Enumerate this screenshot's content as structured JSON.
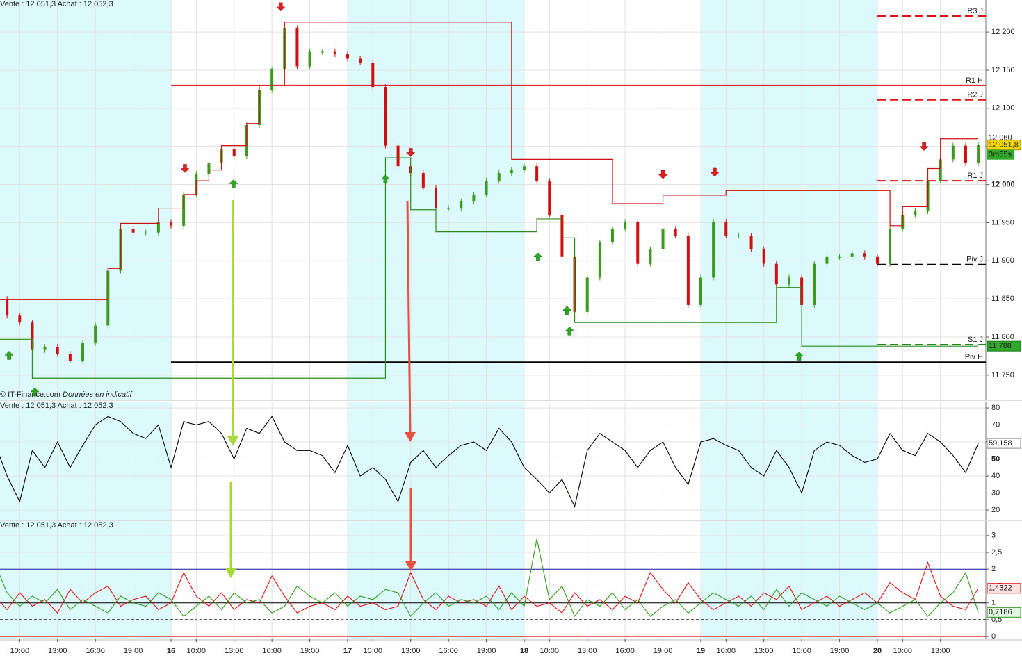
{
  "chart_data": [
    {
      "type": "candle",
      "header": "Vente : 12 051,3 Achat : 12 052,3",
      "source": "© IT-Finance.com",
      "note": "Données en indicatif",
      "x": [
        0,
        1,
        2,
        3,
        4,
        5,
        6,
        7,
        8,
        9,
        10,
        11,
        12,
        13,
        14,
        15,
        16,
        17,
        18,
        19,
        20,
        21,
        22,
        23,
        24,
        25,
        26,
        27,
        28,
        29,
        30,
        31,
        32,
        33,
        34,
        35,
        36,
        37,
        38,
        39,
        40,
        41,
        42,
        43,
        44,
        45,
        46,
        47,
        48,
        49,
        50,
        51,
        52,
        53,
        54,
        55,
        56,
        57,
        58,
        59,
        60,
        61,
        62,
        63,
        64,
        65,
        66,
        67,
        68,
        69,
        70,
        71,
        72,
        73,
        74,
        75,
        76,
        77,
        78
      ],
      "close": [
        11850,
        11828,
        11819,
        11783,
        11787,
        11778,
        11769,
        11792,
        11815,
        11887,
        11942,
        11937,
        11937,
        11951,
        11946,
        11987,
        12014,
        12028,
        12046,
        12037,
        12078,
        12124,
        12151,
        12205,
        12155,
        12174,
        12174,
        12171,
        12165,
        12160,
        12128,
        12051,
        12024,
        12015,
        11996,
        11969,
        11969,
        11978,
        11987,
        12005,
        12015,
        12019,
        12024,
        12005,
        11960,
        11905,
        11833,
        11878,
        11924,
        11942,
        11951,
        11896,
        11915,
        11942,
        11933,
        11842,
        11878,
        11951,
        11933,
        11933,
        11915,
        11896,
        11869,
        11878,
        11842,
        11896,
        11905,
        11905,
        11910,
        11905,
        11896,
        11942,
        11960,
        11965,
        12005,
        12033,
        12051,
        12028,
        12051.8
      ],
      "close_label": "12 051,8",
      "timer": "3m55s",
      "resistance": [
        11849,
        11849,
        11849,
        11849,
        11849,
        11849,
        11849,
        11849,
        11849,
        11890,
        11949,
        11949,
        11949,
        11969,
        11969,
        11987,
        12005,
        12019,
        12051,
        12051,
        12080,
        12130,
        12130,
        12213,
        12213,
        12213,
        12213,
        12213,
        12213,
        12213,
        12213,
        12213,
        12213,
        12213,
        12213,
        12213,
        12213,
        12213,
        12213,
        12213,
        12213,
        12033,
        12033,
        12033,
        12033,
        12033,
        12033,
        12033,
        12033,
        11975,
        11975,
        11975,
        11975,
        11986,
        11986,
        11986,
        11986,
        11986,
        11992,
        11992,
        11992,
        11992,
        11992,
        11992,
        11992,
        11992,
        11992,
        11992,
        11992,
        11992,
        11992,
        11946,
        11971,
        11971,
        12021,
        12060,
        12060,
        12060,
        12060
      ],
      "resistance_label": "12 060",
      "support": [
        11797,
        11797,
        11797,
        11746,
        11746,
        11746,
        11746,
        11746,
        11746,
        11746,
        11746,
        11746,
        11746,
        11746,
        11746,
        11746,
        11746,
        11746,
        11746,
        11746,
        11746,
        11746,
        11746,
        11746,
        11746,
        11746,
        11746,
        11746,
        11746,
        11746,
        11746,
        12035,
        12035,
        11967,
        11967,
        11938,
        11938,
        11938,
        11938,
        11938,
        11938,
        11938,
        11938,
        11955,
        11955,
        11930,
        11819,
        11819,
        11819,
        11819,
        11819,
        11819,
        11819,
        11819,
        11819,
        11819,
        11819,
        11819,
        11819,
        11819,
        11819,
        11819,
        11865,
        11865,
        11788,
        11788,
        11788,
        11788,
        11788,
        11788,
        11788,
        11788,
        11788,
        11788,
        11788,
        11788,
        11788,
        11788,
        11788
      ],
      "support_label": "11 788",
      "colors": {
        "up": "#3c9a1e",
        "down": "#d01010",
        "resistance": "#d01010",
        "support": "#2e8a1a"
      },
      "buy_signals": [
        {
          "x": 1.16,
          "y": 11776
        },
        {
          "x": 3.2,
          "y": 11728
        },
        {
          "x": 18.95,
          "y": 12001
        },
        {
          "x": 31.0,
          "y": 12007
        },
        {
          "x": 43.1,
          "y": 11905
        },
        {
          "x": 45.4,
          "y": 11835
        },
        {
          "x": 45.6,
          "y": 11808
        },
        {
          "x": 63.8,
          "y": 11775
        }
      ],
      "sell_signals": [
        {
          "x": 22.7,
          "y": 12233
        },
        {
          "x": 15.1,
          "y": 12021
        },
        {
          "x": 33.0,
          "y": 12042
        },
        {
          "x": 53.0,
          "y": 12013
        },
        {
          "x": 57.1,
          "y": 12016
        },
        {
          "x": 73.7,
          "y": 12050
        }
      ],
      "levels": [
        {
          "label": "R3 J",
          "value": 12221,
          "from": 70,
          "color": "#e01010",
          "dash": true
        },
        {
          "label": "R1 H",
          "value": 12130,
          "from": 14,
          "color": "#e01010",
          "dash": false
        },
        {
          "label": "R2 J",
          "value": 12111,
          "from": 70,
          "color": "#e01010",
          "dash": true
        },
        {
          "label": "R1 J",
          "value": 12005,
          "from": 70,
          "color": "#e01010",
          "dash": true
        },
        {
          "label": "Piv J",
          "value": 11895,
          "from": 70,
          "color": "#000000",
          "dash": true
        },
        {
          "label": "S1 J",
          "value": 11790,
          "from": 70,
          "color": "#1a8a1a",
          "dash": true
        },
        {
          "label": "Piv H",
          "value": 11767,
          "from": 14,
          "color": "#000000",
          "dash": false
        }
      ],
      "shading": [
        [
          0,
          14
        ],
        [
          28,
          42
        ],
        [
          56,
          70
        ]
      ],
      "xlim": [
        0.44,
        78.6
      ],
      "ylim": [
        11718,
        12242
      ],
      "yticks": [
        {
          "value": 11750,
          "label": "11 750"
        },
        {
          "value": 11800,
          "label": "11 800"
        },
        {
          "value": 11850,
          "label": "11 850"
        },
        {
          "value": 11900,
          "label": "11 900"
        },
        {
          "value": 11950,
          "label": "11 950"
        },
        {
          "value": 12000,
          "label": "12 000",
          "bold": true
        },
        {
          "value": 12050,
          "label": "12 050"
        },
        {
          "value": 12100,
          "label": "12 100"
        },
        {
          "value": 12150,
          "label": "12 150"
        },
        {
          "value": 12200,
          "label": "12 200"
        }
      ]
    },
    {
      "type": "line",
      "header": "Vente : 12 051,3 Achat : 12 052,3",
      "x": [
        0,
        1,
        2,
        3,
        4,
        5,
        6,
        7,
        8,
        9,
        10,
        11,
        12,
        13,
        14,
        15,
        16,
        17,
        18,
        19,
        20,
        21,
        22,
        23,
        24,
        25,
        26,
        27,
        28,
        29,
        30,
        31,
        32,
        33,
        34,
        35,
        36,
        37,
        38,
        39,
        40,
        41,
        42,
        43,
        44,
        45,
        46,
        47,
        48,
        49,
        50,
        51,
        52,
        53,
        54,
        55,
        56,
        57,
        58,
        59,
        60,
        61,
        62,
        63,
        64,
        65,
        66,
        67,
        68,
        69,
        70,
        71,
        72,
        73,
        74,
        75,
        76,
        77,
        78
      ],
      "series": [
        {
          "color": "#000000",
          "values": [
            60,
            40,
            25,
            55,
            45,
            60,
            45,
            58,
            70,
            75,
            72,
            65,
            62,
            70,
            45,
            72,
            70,
            72,
            65,
            50,
            68,
            65,
            75,
            60,
            55,
            55,
            52,
            42,
            58,
            40,
            45,
            38,
            25,
            48,
            55,
            45,
            52,
            58,
            60,
            55,
            68,
            60,
            45,
            38,
            30,
            38,
            22,
            55,
            65,
            60,
            55,
            45,
            55,
            60,
            45,
            35,
            60,
            62,
            58,
            55,
            45,
            40,
            55,
            45,
            30,
            55,
            60,
            58,
            52,
            48,
            50,
            65,
            55,
            52,
            65,
            60,
            52,
            42,
            59.158
          ],
          "last_label": "59,158",
          "label_bg": "#ffffff"
        }
      ],
      "levels": [
        {
          "value": 70,
          "color": "#1a1aa0",
          "dash": false
        },
        {
          "value": 50,
          "color": "#000000",
          "dash": true
        },
        {
          "value": 30,
          "color": "#1a1aa0",
          "dash": false
        }
      ],
      "xlim": [
        0.44,
        78.6
      ],
      "ylim": [
        14.3,
        83.7
      ],
      "yticks": [
        20,
        30,
        40,
        {
          "value": 50,
          "label": "50",
          "bold": true
        },
        60,
        70,
        80
      ]
    },
    {
      "type": "line",
      "header": "Vente : 12 051,3 Achat : 12 052,3",
      "x": [
        0,
        1,
        2,
        3,
        4,
        5,
        6,
        7,
        8,
        9,
        10,
        11,
        12,
        13,
        14,
        15,
        16,
        17,
        18,
        19,
        20,
        21,
        22,
        23,
        24,
        25,
        26,
        27,
        28,
        29,
        30,
        31,
        32,
        33,
        34,
        35,
        36,
        37,
        38,
        39,
        40,
        41,
        42,
        43,
        44,
        45,
        46,
        47,
        48,
        49,
        50,
        51,
        52,
        53,
        54,
        55,
        56,
        57,
        58,
        59,
        60,
        61,
        62,
        63,
        64,
        65,
        66,
        67,
        68,
        69,
        70,
        71,
        72,
        73,
        74,
        75,
        76,
        77,
        78
      ],
      "series": [
        {
          "color": "#e01010",
          "values": [
            1.2,
            0.8,
            1.3,
            0.9,
            1.1,
            0.7,
            1.4,
            1,
            1.3,
            1.5,
            0.9,
            1.1,
            1.2,
            0.8,
            1,
            1.9,
            1.2,
            0.9,
            1.3,
            0.8,
            1.1,
            1,
            1.8,
            1.2,
            0.7,
            0.9,
            1,
            0.8,
            1.2,
            0.9,
            1,
            0.8,
            0.9,
            1.9,
            1.1,
            0.8,
            1.2,
            1,
            1.1,
            0.9,
            1.5,
            0.8,
            1.2,
            0.9,
            1,
            0.7,
            1.3,
            0.9,
            1.1,
            0.8,
            1.2,
            1,
            1.9,
            1.4,
            1,
            1.6,
            1.1,
            0.8,
            1,
            1.2,
            0.9,
            1.3,
            1.1,
            1.5,
            0.8,
            1,
            1.2,
            0.9,
            1.1,
            1.3,
            1,
            1.6,
            1.3,
            1.1,
            2.2,
            1.2,
            0.9,
            0.8,
            1.4322
          ],
          "last_label": "1,4322",
          "label_bg": "#fde0e0"
        },
        {
          "color": "#2e9a1a",
          "values": [
            2.2,
            1.3,
            0.9,
            1.2,
            1,
            1.4,
            0.8,
            1.1,
            0.9,
            0.7,
            1.2,
            1,
            0.9,
            1.3,
            1.1,
            0.6,
            0.9,
            1.2,
            0.8,
            1.3,
            1,
            1.1,
            0.7,
            0.9,
            1.5,
            1.2,
            1,
            1.3,
            0.9,
            1.2,
            1.1,
            1.4,
            1.3,
            0.6,
            1,
            1.3,
            0.9,
            1.1,
            1,
            1.2,
            0.8,
            1.3,
            0.9,
            2.9,
            1.1,
            1.5,
            0.6,
            1.1,
            0.9,
            1.3,
            0.8,
            1.1,
            0.6,
            0.9,
            1.1,
            0.7,
            1,
            1.3,
            1.1,
            0.9,
            1.2,
            0.8,
            1.4,
            0.9,
            1.3,
            1.1,
            0.9,
            1.2,
            1,
            0.8,
            1,
            0.7,
            0.9,
            1.1,
            0.6,
            1,
            1.3,
            1.9,
            0.7186
          ],
          "last_label": "0,7186",
          "label_bg": "#e0f6e0"
        }
      ],
      "levels": [
        {
          "value": 2,
          "color": "#1a1aa0",
          "dash": false
        },
        {
          "value": 1.5,
          "color": "#000000",
          "dash": true
        },
        {
          "value": 1,
          "color": "#000000",
          "dash": false
        },
        {
          "value": 0.5,
          "color": "#000000",
          "dash": true
        },
        {
          "value": 0,
          "color": "#e01010",
          "dash": false
        }
      ],
      "xlim": [
        0.44,
        78.6
      ],
      "ylim": [
        -0.08,
        3.43
      ],
      "yticks": [
        0,
        {
          "value": 0.5,
          "label": "0,5"
        },
        1,
        {
          "value": 1.5,
          "label": "1,5"
        },
        2,
        {
          "value": 2.5,
          "label": "2,5"
        },
        3
      ],
      "xticks": [
        {
          "value": 2,
          "label": "10:00"
        },
        {
          "value": 5,
          "label": "13:00"
        },
        {
          "value": 8,
          "label": "16:00"
        },
        {
          "value": 11,
          "label": "19:00"
        },
        {
          "value": 14,
          "label": "16",
          "bold": true
        },
        {
          "value": 16,
          "label": "10:00"
        },
        {
          "value": 19,
          "label": "13:00"
        },
        {
          "value": 22,
          "label": "16:00"
        },
        {
          "value": 25,
          "label": "19:00"
        },
        {
          "value": 28,
          "label": "17",
          "bold": true
        },
        {
          "value": 30,
          "label": "10:00"
        },
        {
          "value": 33,
          "label": "13:00"
        },
        {
          "value": 36,
          "label": "16:00"
        },
        {
          "value": 39,
          "label": "19:00"
        },
        {
          "value": 42,
          "label": "18",
          "bold": true
        },
        {
          "value": 44,
          "label": "10:00"
        },
        {
          "value": 47,
          "label": "13:00"
        },
        {
          "value": 50,
          "label": "16:00"
        },
        {
          "value": 53,
          "label": "19:00"
        },
        {
          "value": 56,
          "label": "19",
          "bold": true
        },
        {
          "value": 58,
          "label": "10:00"
        },
        {
          "value": 61,
          "label": "13:00"
        },
        {
          "value": 64,
          "label": "16:00"
        },
        {
          "value": 67,
          "label": "19:00"
        },
        {
          "value": 70,
          "label": "20",
          "bold": true
        },
        {
          "value": 72,
          "label": "10:00"
        },
        {
          "value": 75,
          "label": "13:00"
        }
      ]
    }
  ]
}
